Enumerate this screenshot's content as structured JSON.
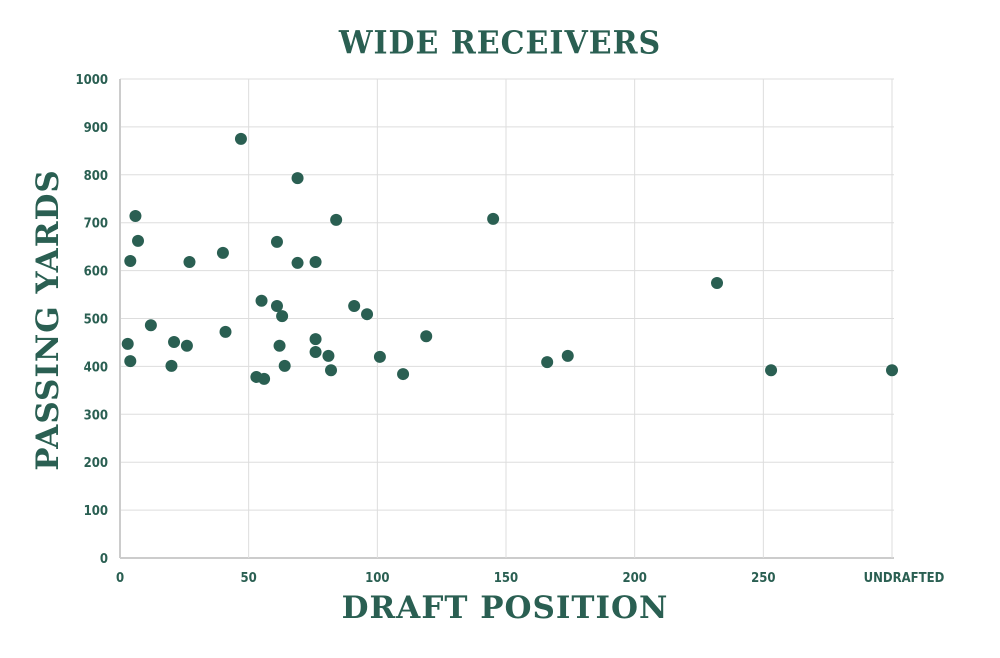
{
  "chart_data": {
    "type": "scatter",
    "title": "WIDE RECEIVERS",
    "xlabel": "DRAFT POSITION",
    "ylabel": "PASSING YARDS",
    "xlim": [
      0,
      300
    ],
    "ylim": [
      0,
      1000
    ],
    "x_ticks": [
      0,
      50,
      100,
      150,
      200,
      250,
      300
    ],
    "x_tick_labels": [
      "0",
      "50",
      "100",
      "150",
      "200",
      "250",
      "UNDRAFTED"
    ],
    "y_ticks": [
      0,
      100,
      200,
      300,
      400,
      500,
      600,
      700,
      800,
      900,
      1000
    ],
    "y_tick_labels": [
      "0",
      "100",
      "200",
      "300",
      "400",
      "500",
      "600",
      "700",
      "800",
      "900",
      "1000"
    ],
    "grid": true,
    "legend": null,
    "marker_color": "#2a5f52",
    "points": [
      {
        "x": 47,
        "y": 875
      },
      {
        "x": 69,
        "y": 793
      },
      {
        "x": 6,
        "y": 714
      },
      {
        "x": 84,
        "y": 706
      },
      {
        "x": 145,
        "y": 708
      },
      {
        "x": 7,
        "y": 662
      },
      {
        "x": 61,
        "y": 660
      },
      {
        "x": 40,
        "y": 637
      },
      {
        "x": 4,
        "y": 620
      },
      {
        "x": 27,
        "y": 618
      },
      {
        "x": 69,
        "y": 616
      },
      {
        "x": 76,
        "y": 618
      },
      {
        "x": 232,
        "y": 574
      },
      {
        "x": 55,
        "y": 537
      },
      {
        "x": 61,
        "y": 526
      },
      {
        "x": 63,
        "y": 505
      },
      {
        "x": 91,
        "y": 526
      },
      {
        "x": 96,
        "y": 509
      },
      {
        "x": 12,
        "y": 486
      },
      {
        "x": 41,
        "y": 472
      },
      {
        "x": 119,
        "y": 463
      },
      {
        "x": 76,
        "y": 457
      },
      {
        "x": 3,
        "y": 447
      },
      {
        "x": 21,
        "y": 451
      },
      {
        "x": 26,
        "y": 443
      },
      {
        "x": 62,
        "y": 443
      },
      {
        "x": 76,
        "y": 430
      },
      {
        "x": 81,
        "y": 422
      },
      {
        "x": 101,
        "y": 420
      },
      {
        "x": 4,
        "y": 411
      },
      {
        "x": 166,
        "y": 409
      },
      {
        "x": 174,
        "y": 422
      },
      {
        "x": 20,
        "y": 401
      },
      {
        "x": 64,
        "y": 401
      },
      {
        "x": 82,
        "y": 392
      },
      {
        "x": 110,
        "y": 384
      },
      {
        "x": 53,
        "y": 378
      },
      {
        "x": 56,
        "y": 374
      },
      {
        "x": 253,
        "y": 392
      },
      {
        "x": 300,
        "y": 392,
        "label": "UNDRAFTED"
      }
    ]
  },
  "colors": {
    "primary": "#2a5f52",
    "grid": "#dddddd",
    "axis": "#cccccc",
    "background": "#ffffff"
  }
}
